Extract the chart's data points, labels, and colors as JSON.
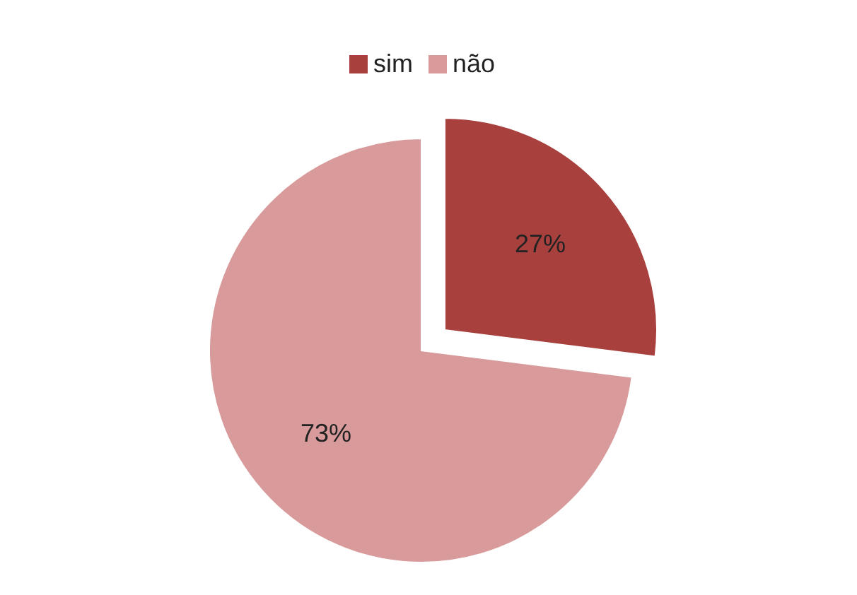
{
  "chart_data": {
    "type": "pie",
    "categories": [
      "sim",
      "não"
    ],
    "values": [
      27,
      73
    ],
    "colors": [
      "#a8403e",
      "#d89a9a"
    ],
    "value_labels": [
      "27%",
      "73%"
    ],
    "legend": "top"
  }
}
